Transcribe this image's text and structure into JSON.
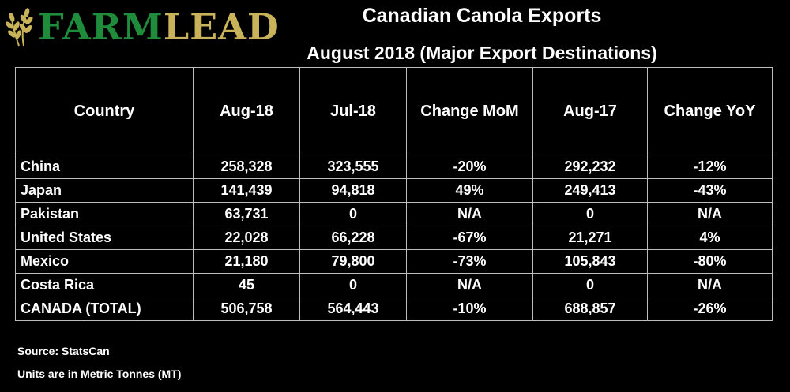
{
  "logo": {
    "part1": "FARM",
    "part2": "LEAD"
  },
  "title": "Canadian Canola Exports",
  "subtitle": "August 2018 (Major Export Destinations)",
  "colors": {
    "negative": "#ff2a2a",
    "positive": "#3cd14a",
    "logo_green": "#1e8c3a",
    "logo_gold": "#c9b35a"
  },
  "chart_data": {
    "type": "table",
    "columns": [
      "Country",
      "Aug-18",
      "Jul-18",
      "Change MoM",
      "Aug-17",
      "Change YoY"
    ],
    "rows": [
      [
        "China",
        "258,328",
        "323,555",
        "-20%",
        "292,232",
        "-12%"
      ],
      [
        "Japan",
        "141,439",
        "94,818",
        "49%",
        "249,413",
        "-43%"
      ],
      [
        "Pakistan",
        "63,731",
        "0",
        "N/A",
        "0",
        "N/A"
      ],
      [
        "United States",
        "22,028",
        "66,228",
        "-67%",
        "21,271",
        "4%"
      ],
      [
        "Mexico",
        "21,180",
        "79,800",
        "-73%",
        "105,843",
        "-80%"
      ],
      [
        "Costa Rica",
        "45",
        "0",
        "N/A",
        "0",
        "N/A"
      ],
      [
        "CANADA (TOTAL)",
        "506,758",
        "564,443",
        "-10%",
        "688,857",
        "-26%"
      ]
    ]
  },
  "notes": {
    "source": "Source: StatsCan",
    "units": "Units are in Metric Tonnes (MT)"
  }
}
